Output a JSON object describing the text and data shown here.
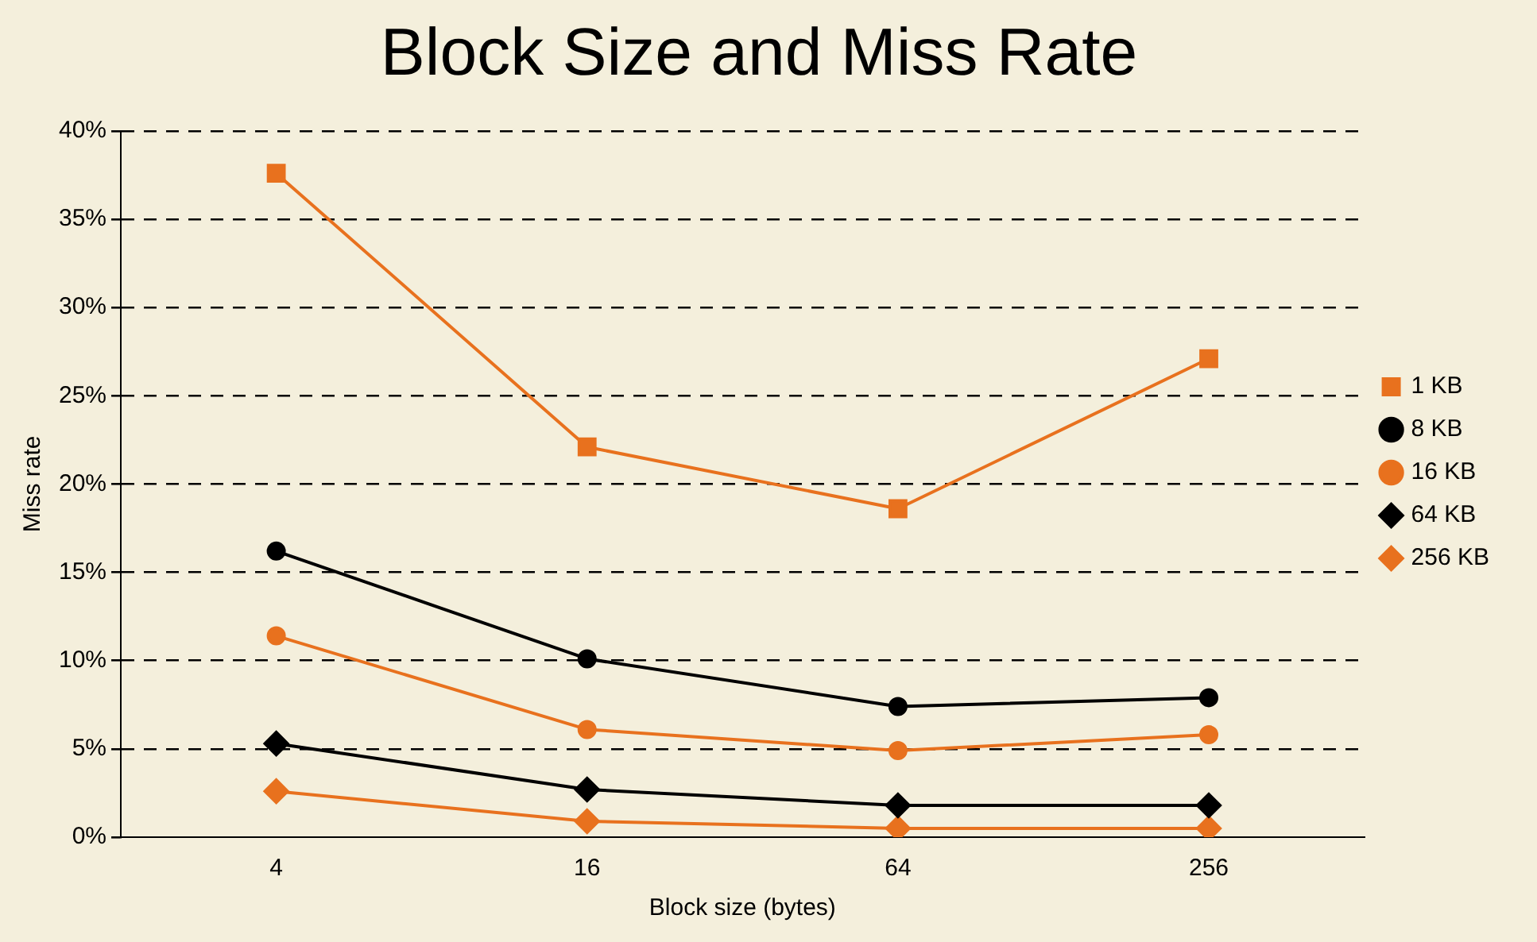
{
  "chart_data": {
    "type": "line",
    "title": "Block Size and Miss Rate",
    "xlabel": "Block size (bytes)",
    "ylabel": "Miss rate",
    "categories": [
      "4",
      "16",
      "64",
      "256"
    ],
    "series": [
      {
        "name": "1 KB",
        "color": "#e8711e",
        "marker": "square",
        "values": [
          37.6,
          22.1,
          18.6,
          27.1
        ]
      },
      {
        "name": "8 KB",
        "color": "#000000",
        "marker": "circle",
        "values": [
          16.2,
          10.1,
          7.4,
          7.9
        ]
      },
      {
        "name": "16 KB",
        "color": "#e8711e",
        "marker": "circle",
        "values": [
          11.4,
          6.1,
          4.9,
          5.8
        ]
      },
      {
        "name": "64 KB",
        "color": "#000000",
        "marker": "diamond",
        "values": [
          5.3,
          2.7,
          1.8,
          1.8
        ]
      },
      {
        "name": "256 KB",
        "color": "#e8711e",
        "marker": "diamond",
        "values": [
          2.6,
          0.9,
          0.5,
          0.5
        ]
      }
    ],
    "ylim": [
      0,
      40
    ],
    "yticks": [
      {
        "value": 0,
        "label": "0%"
      },
      {
        "value": 5,
        "label": "5%"
      },
      {
        "value": 10,
        "label": "10%"
      },
      {
        "value": 15,
        "label": "15%"
      },
      {
        "value": 20,
        "label": "20%"
      },
      {
        "value": 25,
        "label": "25%"
      },
      {
        "value": 30,
        "label": "30%"
      },
      {
        "value": 35,
        "label": "35%"
      },
      {
        "value": 40,
        "label": "40%"
      }
    ],
    "grid": "y",
    "legend": "right",
    "line_style": "solid"
  }
}
